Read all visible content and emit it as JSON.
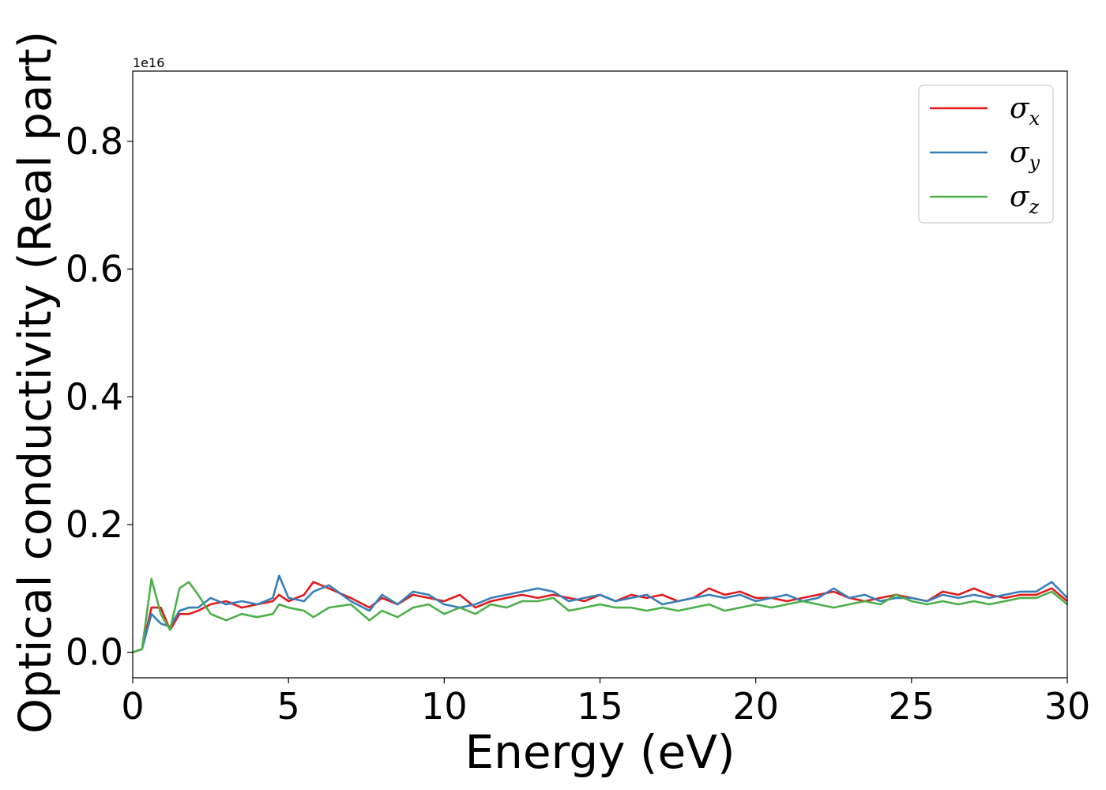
{
  "chart_data": {
    "type": "line",
    "title": "",
    "xlabel": "Energy (eV)",
    "ylabel": "Optical conductivity (Real part)",
    "y_offset_label": "1e16",
    "xlim": [
      0,
      30
    ],
    "ylim": [
      -0.04,
      0.91
    ],
    "x_ticks": [
      0,
      5,
      10,
      15,
      20,
      25,
      30
    ],
    "y_ticks": [
      0.0,
      0.2,
      0.4,
      0.6,
      0.8
    ],
    "x_tick_labels": [
      "0",
      "5",
      "10",
      "15",
      "20",
      "25",
      "30"
    ],
    "y_tick_labels": [
      "0.0",
      "0.2",
      "0.4",
      "0.6",
      "0.8"
    ],
    "grid": false,
    "legend_position": "top-right",
    "x": [
      0,
      0.3,
      0.6,
      0.9,
      1.2,
      1.5,
      1.8,
      2.1,
      2.5,
      3,
      3.5,
      4,
      4.5,
      4.7,
      5,
      5.5,
      5.8,
      6.3,
      7,
      7.6,
      8,
      8.5,
      9,
      9.5,
      10,
      10.5,
      11,
      11.5,
      12,
      12.5,
      13,
      13.5,
      14,
      14.5,
      15,
      15.5,
      16,
      16.5,
      17,
      17.5,
      18,
      18.5,
      19,
      19.5,
      20,
      20.5,
      21,
      21.5,
      22,
      22.5,
      23,
      23.5,
      24,
      24.5,
      25,
      25.5,
      26,
      26.5,
      27,
      27.5,
      28,
      28.5,
      29,
      29.5,
      30
    ],
    "series": [
      {
        "name": "σx",
        "label_base": "σ",
        "label_sub": "x",
        "color": "#e41a1c",
        "values": [
          0,
          0.005,
          0.07,
          0.07,
          0.035,
          0.06,
          0.06,
          0.065,
          0.075,
          0.08,
          0.07,
          0.075,
          0.08,
          0.09,
          0.08,
          0.09,
          0.11,
          0.1,
          0.085,
          0.07,
          0.085,
          0.075,
          0.09,
          0.085,
          0.08,
          0.09,
          0.07,
          0.08,
          0.085,
          0.09,
          0.085,
          0.09,
          0.085,
          0.08,
          0.09,
          0.08,
          0.09,
          0.085,
          0.09,
          0.08,
          0.085,
          0.1,
          0.09,
          0.095,
          0.085,
          0.085,
          0.08,
          0.085,
          0.09,
          0.095,
          0.085,
          0.08,
          0.085,
          0.09,
          0.085,
          0.08,
          0.095,
          0.09,
          0.1,
          0.09,
          0.085,
          0.09,
          0.09,
          0.1,
          0.08
        ]
      },
      {
        "name": "σy",
        "label_base": "σ",
        "label_sub": "y",
        "color": "#377eb8",
        "values": [
          0,
          0.005,
          0.06,
          0.045,
          0.04,
          0.065,
          0.07,
          0.07,
          0.085,
          0.075,
          0.08,
          0.075,
          0.085,
          0.12,
          0.085,
          0.08,
          0.095,
          0.105,
          0.08,
          0.065,
          0.09,
          0.075,
          0.095,
          0.09,
          0.075,
          0.07,
          0.075,
          0.085,
          0.09,
          0.095,
          0.1,
          0.095,
          0.08,
          0.085,
          0.09,
          0.08,
          0.085,
          0.09,
          0.075,
          0.08,
          0.085,
          0.09,
          0.085,
          0.09,
          0.08,
          0.085,
          0.09,
          0.08,
          0.085,
          0.1,
          0.085,
          0.09,
          0.08,
          0.085,
          0.085,
          0.08,
          0.09,
          0.085,
          0.09,
          0.085,
          0.09,
          0.095,
          0.095,
          0.11,
          0.085
        ]
      },
      {
        "name": "σz",
        "label_base": "σ",
        "label_sub": "z",
        "color": "#4daf4a",
        "values": [
          0,
          0.005,
          0.115,
          0.06,
          0.035,
          0.1,
          0.11,
          0.09,
          0.06,
          0.05,
          0.06,
          0.055,
          0.06,
          0.075,
          0.07,
          0.065,
          0.055,
          0.07,
          0.075,
          0.05,
          0.065,
          0.055,
          0.07,
          0.075,
          0.06,
          0.07,
          0.06,
          0.075,
          0.07,
          0.08,
          0.08,
          0.085,
          0.065,
          0.07,
          0.075,
          0.07,
          0.07,
          0.065,
          0.07,
          0.065,
          0.07,
          0.075,
          0.065,
          0.07,
          0.075,
          0.07,
          0.075,
          0.08,
          0.075,
          0.07,
          0.075,
          0.08,
          0.075,
          0.09,
          0.08,
          0.075,
          0.08,
          0.075,
          0.08,
          0.075,
          0.08,
          0.085,
          0.085,
          0.095,
          0.075
        ]
      }
    ]
  }
}
